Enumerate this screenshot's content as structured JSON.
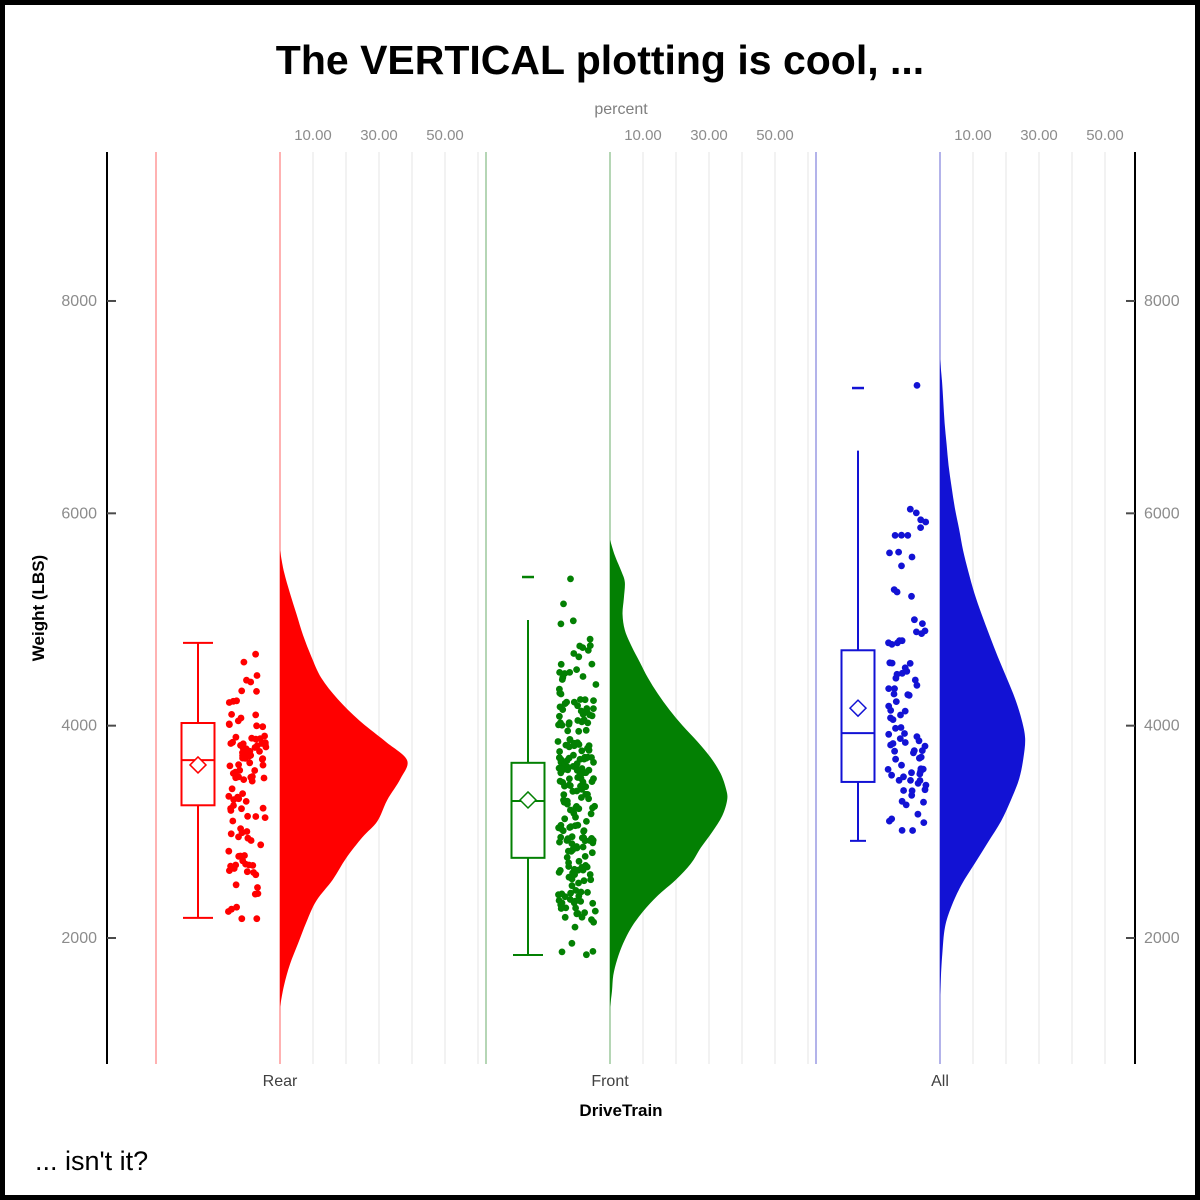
{
  "chart_data": {
    "type": "raincloud",
    "orientation": "vertical",
    "title": "The VERTICAL plotting is cool, ...",
    "footnote": "... isn't it?",
    "x_axis": {
      "label": "DriveTrain",
      "categories": [
        "Rear",
        "Front",
        "All"
      ]
    },
    "y_axis": {
      "label": "Weight (LBS)",
      "ticks": [
        2000,
        4000,
        6000,
        8000
      ],
      "tick_labels": [
        "2000",
        "4000",
        "6000",
        "8000"
      ],
      "range": [
        800,
        9400
      ],
      "mirrored_right": true
    },
    "top_axis": {
      "label": "percent",
      "tick_values": [
        10,
        30,
        50
      ],
      "tick_labels": [
        "10.00",
        "30.00",
        "50.00"
      ],
      "gridlines": [
        10,
        20,
        30,
        40,
        50,
        60
      ]
    },
    "groups": [
      {
        "category": "Rear",
        "color": "#ff0000",
        "light_color": "#ffb2b2",
        "n": 110,
        "box": {
          "whisker_low": 2190,
          "q1": 3250,
          "median": 3675,
          "mean": 3630,
          "q3": 4025,
          "whisker_high": 4780,
          "cap_low": true,
          "cap_high": true
        },
        "outlier_dashes": [],
        "extra_points": [],
        "jitter_seed": 11,
        "jitter_range": [
          2170,
          4785
        ],
        "violin": [
          [
            1350,
            0
          ],
          [
            1550,
            1.2
          ],
          [
            1750,
            3
          ],
          [
            1950,
            5.5
          ],
          [
            2150,
            8
          ],
          [
            2350,
            11
          ],
          [
            2550,
            16
          ],
          [
            2750,
            20
          ],
          [
            2950,
            25
          ],
          [
            3100,
            29.5
          ],
          [
            3300,
            32.5
          ],
          [
            3500,
            36.5
          ],
          [
            3675,
            38.5
          ],
          [
            3850,
            32
          ],
          [
            4050,
            24
          ],
          [
            4250,
            17.5
          ],
          [
            4450,
            12.5
          ],
          [
            4650,
            9.5
          ],
          [
            4850,
            7
          ],
          [
            5050,
            5
          ],
          [
            5250,
            3
          ],
          [
            5450,
            1.2
          ],
          [
            5650,
            0
          ]
        ]
      },
      {
        "category": "Front",
        "color": "#038003",
        "light_color": "#b5d6b5",
        "n": 226,
        "box": {
          "whisker_low": 1840,
          "q1": 2755,
          "median": 3290,
          "mean": 3300,
          "q3": 3650,
          "whisker_high": 4995,
          "cap_low": true,
          "cap_high": false
        },
        "outlier_dashes": [
          5400
        ],
        "extra_points": [],
        "jitter_seed": 23,
        "jitter_range": [
          1840,
          5390
        ],
        "violin": [
          [
            1350,
            0
          ],
          [
            1500,
            0.6
          ],
          [
            1650,
            1
          ],
          [
            1800,
            2.2
          ],
          [
            1950,
            4
          ],
          [
            2100,
            6.5
          ],
          [
            2250,
            10
          ],
          [
            2400,
            14.5
          ],
          [
            2550,
            20
          ],
          [
            2700,
            24.5
          ],
          [
            2850,
            27.5
          ],
          [
            3000,
            31
          ],
          [
            3150,
            34
          ],
          [
            3300,
            35.5
          ],
          [
            3400,
            35.2
          ],
          [
            3550,
            33.5
          ],
          [
            3700,
            30.5
          ],
          [
            3850,
            26.5
          ],
          [
            4000,
            22
          ],
          [
            4150,
            18
          ],
          [
            4300,
            14.5
          ],
          [
            4450,
            11.5
          ],
          [
            4600,
            9
          ],
          [
            4750,
            6.5
          ],
          [
            4900,
            4.5
          ],
          [
            5050,
            3.8
          ],
          [
            5200,
            4.2
          ],
          [
            5350,
            4.5
          ],
          [
            5450,
            3.5
          ],
          [
            5600,
            1.5
          ],
          [
            5750,
            0
          ]
        ]
      },
      {
        "category": "All",
        "color": "#1212d4",
        "light_color": "#b3b3ea",
        "n": 92,
        "box": {
          "whisker_low": 2915,
          "q1": 3470,
          "median": 3930,
          "mean": 4165,
          "q3": 4710,
          "whisker_high": 6590,
          "cap_low": true,
          "cap_high": false
        },
        "outlier_dashes": [
          7180
        ],
        "extra_points": [
          [
            -23,
            7205
          ]
        ],
        "jitter_seed": 37,
        "jitter_range": [
          2915,
          6590
        ],
        "violin": [
          [
            1450,
            0
          ],
          [
            1650,
            0.3
          ],
          [
            1850,
            0.7
          ],
          [
            2100,
            1.5
          ],
          [
            2300,
            3.5
          ],
          [
            2500,
            6.5
          ],
          [
            2700,
            10.5
          ],
          [
            2900,
            14.5
          ],
          [
            3100,
            18.5
          ],
          [
            3300,
            21.5
          ],
          [
            3500,
            24
          ],
          [
            3700,
            25.3
          ],
          [
            3880,
            25.8
          ],
          [
            4050,
            24.8
          ],
          [
            4250,
            22.8
          ],
          [
            4450,
            20.2
          ],
          [
            4650,
            17.5
          ],
          [
            4850,
            15
          ],
          [
            5050,
            12.6
          ],
          [
            5250,
            10.4
          ],
          [
            5450,
            8.6
          ],
          [
            5650,
            7
          ],
          [
            5850,
            5.8
          ],
          [
            6050,
            4.5
          ],
          [
            6250,
            3.5
          ],
          [
            6450,
            2.6
          ],
          [
            6650,
            2
          ],
          [
            6850,
            1.4
          ],
          [
            7050,
            1
          ],
          [
            7250,
            0.6
          ],
          [
            7450,
            0
          ]
        ]
      }
    ],
    "legend": "none",
    "grid": "vertical-only"
  }
}
